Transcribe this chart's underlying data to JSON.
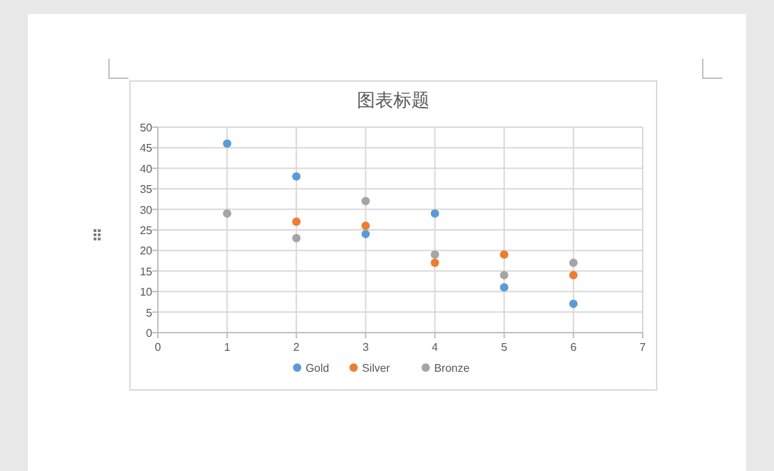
{
  "chart_data": {
    "type": "scatter",
    "title": "图表标题",
    "x": [
      1,
      2,
      3,
      4,
      5,
      6
    ],
    "series": [
      {
        "name": "Gold",
        "color": "#5b9bd5",
        "values": [
          46,
          38,
          24,
          29,
          11,
          7
        ]
      },
      {
        "name": "Silver",
        "color": "#ed7d31",
        "values": [
          null,
          27,
          26,
          17,
          19,
          14
        ]
      },
      {
        "name": "Bronze",
        "color": "#a5a5a5",
        "values": [
          29,
          23,
          32,
          19,
          14,
          17
        ]
      }
    ],
    "xlim": [
      0,
      7
    ],
    "xticks": [
      0,
      1,
      2,
      3,
      4,
      5,
      6,
      7
    ],
    "ylim": [
      0,
      50
    ],
    "yticks": [
      0,
      5,
      10,
      15,
      20,
      25,
      30,
      35,
      40,
      45,
      50
    ],
    "grid": true,
    "legend": "bottom",
    "marker": "circle"
  }
}
